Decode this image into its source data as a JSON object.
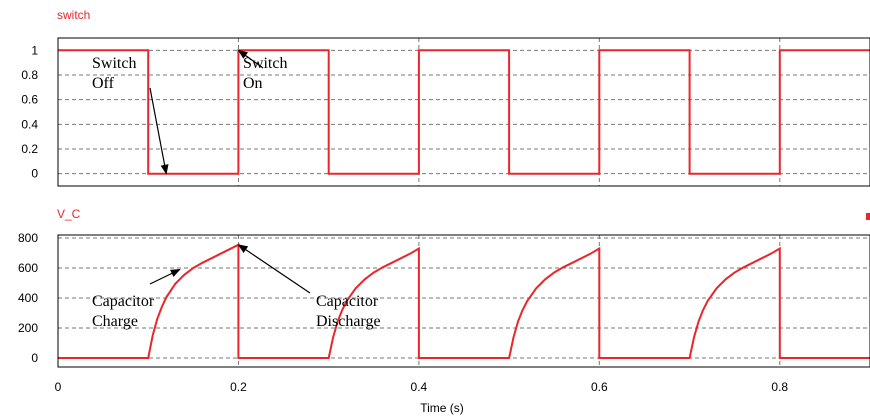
{
  "colors": {
    "trace": "#e8262b",
    "grid": "#777777",
    "frame": "#000000"
  },
  "chart_data": [
    {
      "type": "line",
      "title": "switch",
      "xlim": [
        0,
        0.9
      ],
      "ylim": [
        -0.1,
        1.1
      ],
      "yticks": [
        "1",
        "0.8",
        "0.6",
        "0.4",
        "0.2",
        "0"
      ],
      "ytick_values": [
        1,
        0.8,
        0.6,
        0.4,
        0.2,
        0
      ],
      "grid": true,
      "series": [
        {
          "x": [
            0,
            0.1,
            0.1,
            0.2,
            0.2,
            0.3,
            0.3,
            0.4,
            0.4,
            0.5,
            0.5,
            0.6,
            0.6,
            0.7,
            0.7,
            0.8,
            0.8,
            0.9
          ],
          "y": [
            1,
            1,
            0,
            0,
            1,
            1,
            0,
            0,
            1,
            1,
            0,
            0,
            1,
            1,
            0,
            0,
            1,
            1
          ]
        }
      ],
      "annotations": [
        {
          "lines": [
            "Switch",
            "Off"
          ],
          "points_to": [
            0.12,
            0
          ]
        },
        {
          "lines": [
            "Switch",
            "On"
          ],
          "points_to": [
            0.2,
            1
          ]
        }
      ]
    },
    {
      "type": "line",
      "title": "V_C",
      "xlim": [
        0,
        0.9
      ],
      "ylim": [
        -60,
        820
      ],
      "yticks": [
        "800",
        "600",
        "400",
        "200",
        "0"
      ],
      "ytick_values": [
        800,
        600,
        400,
        200,
        0
      ],
      "grid": true,
      "series": [
        {
          "x": [
            0,
            0.1,
            0.1,
            0.105,
            0.11,
            0.115,
            0.12,
            0.13,
            0.14,
            0.15,
            0.16,
            0.17,
            0.18,
            0.19,
            0.2,
            0.2,
            0.3,
            0.3,
            0.305,
            0.31,
            0.315,
            0.32,
            0.33,
            0.34,
            0.35,
            0.36,
            0.37,
            0.38,
            0.39,
            0.4,
            0.4,
            0.5,
            0.5,
            0.505,
            0.51,
            0.515,
            0.52,
            0.53,
            0.54,
            0.55,
            0.56,
            0.57,
            0.58,
            0.59,
            0.6,
            0.6,
            0.7,
            0.7,
            0.705,
            0.71,
            0.715,
            0.72,
            0.73,
            0.74,
            0.75,
            0.76,
            0.77,
            0.78,
            0.79,
            0.8,
            0.8,
            0.9
          ],
          "y": [
            0,
            0,
            0,
            150,
            260,
            340,
            405,
            495,
            555,
            600,
            635,
            665,
            695,
            725,
            755,
            0,
            0,
            0,
            140,
            245,
            320,
            380,
            465,
            525,
            570,
            605,
            635,
            665,
            695,
            730,
            0,
            0,
            0,
            140,
            245,
            320,
            380,
            465,
            525,
            570,
            605,
            635,
            665,
            695,
            730,
            0,
            0,
            0,
            140,
            245,
            320,
            380,
            465,
            525,
            570,
            605,
            635,
            665,
            695,
            730,
            0,
            0
          ]
        }
      ],
      "annotations": [
        {
          "lines": [
            "Capacitor",
            "Charge"
          ],
          "points_to": [
            0.135,
            590
          ]
        },
        {
          "lines": [
            "Capacitor",
            "Discharge"
          ],
          "points_to": [
            0.2,
            755
          ]
        }
      ]
    }
  ],
  "x_axis": {
    "label": "Time (s)",
    "ticks": [
      "0",
      "0.2",
      "0.4",
      "0.6",
      "0.8"
    ],
    "tick_values": [
      0,
      0.2,
      0.4,
      0.6,
      0.8
    ]
  }
}
